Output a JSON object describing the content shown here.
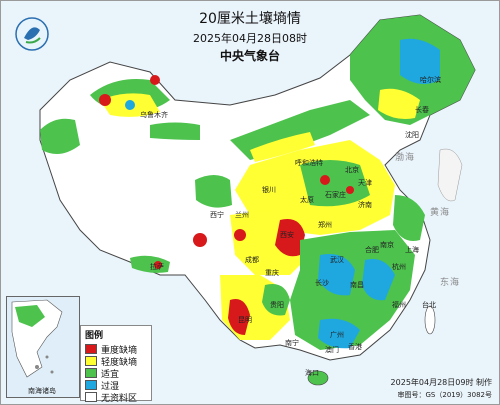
{
  "header": {
    "title": "20厘米土壤墒情",
    "datetime": "2025年04月28日08时",
    "issuer": "中央气象台"
  },
  "legend": {
    "title": "图例",
    "items": [
      {
        "label": "重度缺墒",
        "color": "#d7191c"
      },
      {
        "label": "轻度缺墒",
        "color": "#ffff33"
      },
      {
        "label": "适宜",
        "color": "#4dc24d"
      },
      {
        "label": "过湿",
        "color": "#1fa8e0"
      },
      {
        "label": "无资料区",
        "color": "#ffffff"
      }
    ]
  },
  "inset": {
    "label": "南海诸岛"
  },
  "credits": {
    "made": "2025年04月28日09时 制作",
    "approval": "审图号：GS（2019）3082号"
  },
  "sea_labels": {
    "yellow_sea": "黄海",
    "east_sea": "东海",
    "bohai": "渤海"
  },
  "cities": [
    "北京",
    "天津",
    "石家庄",
    "太原",
    "呼和浩特",
    "济南",
    "郑州",
    "西安",
    "兰州",
    "银川",
    "西宁",
    "南京",
    "上海",
    "杭州",
    "合肥",
    "武汉",
    "长沙",
    "南昌",
    "福州",
    "台北",
    "广州",
    "香港",
    "澳门",
    "南宁",
    "海口",
    "贵阳",
    "昆明",
    "成都",
    "重庆",
    "拉萨",
    "乌鲁木齐",
    "沈阳",
    "长春",
    "哈尔滨"
  ],
  "colors": {
    "background": "#eaf4fb",
    "land_nodata": "#ffffff",
    "severe_dry": "#d7191c",
    "mild_dry": "#ffff33",
    "suitable": "#4dc24d",
    "wet": "#1fa8e0"
  }
}
